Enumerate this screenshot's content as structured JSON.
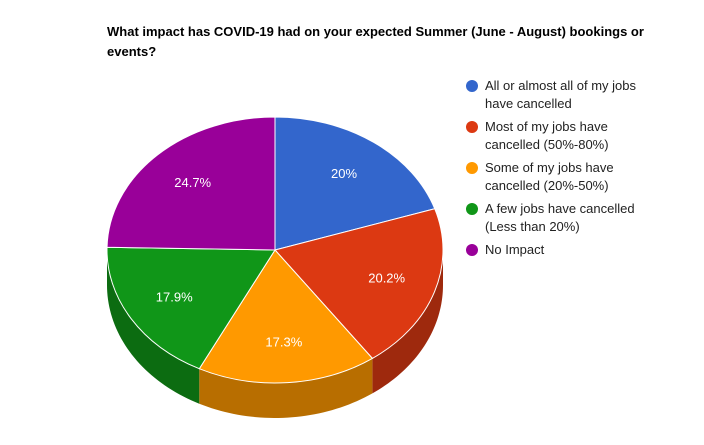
{
  "chart_data": {
    "type": "pie",
    "title": "What impact has COVID-19 had on your expected Summer (June - August) bookings or events?",
    "categories": [
      "All or almost all of my jobs have cancelled",
      "Most of my jobs have cancelled (50%-80%)",
      "Some of my jobs have cancelled (20%-50%)",
      "A few jobs have cancelled (Less than 20%)",
      "No Impact"
    ],
    "values": [
      20,
      20.2,
      17.3,
      17.9,
      24.7
    ],
    "value_labels": [
      "20%",
      "20.2%",
      "17.3%",
      "17.9%",
      "24.7%"
    ],
    "colors": [
      "#3366cc",
      "#dc3912",
      "#ff9900",
      "#109618",
      "#990099"
    ],
    "legend": "right"
  }
}
